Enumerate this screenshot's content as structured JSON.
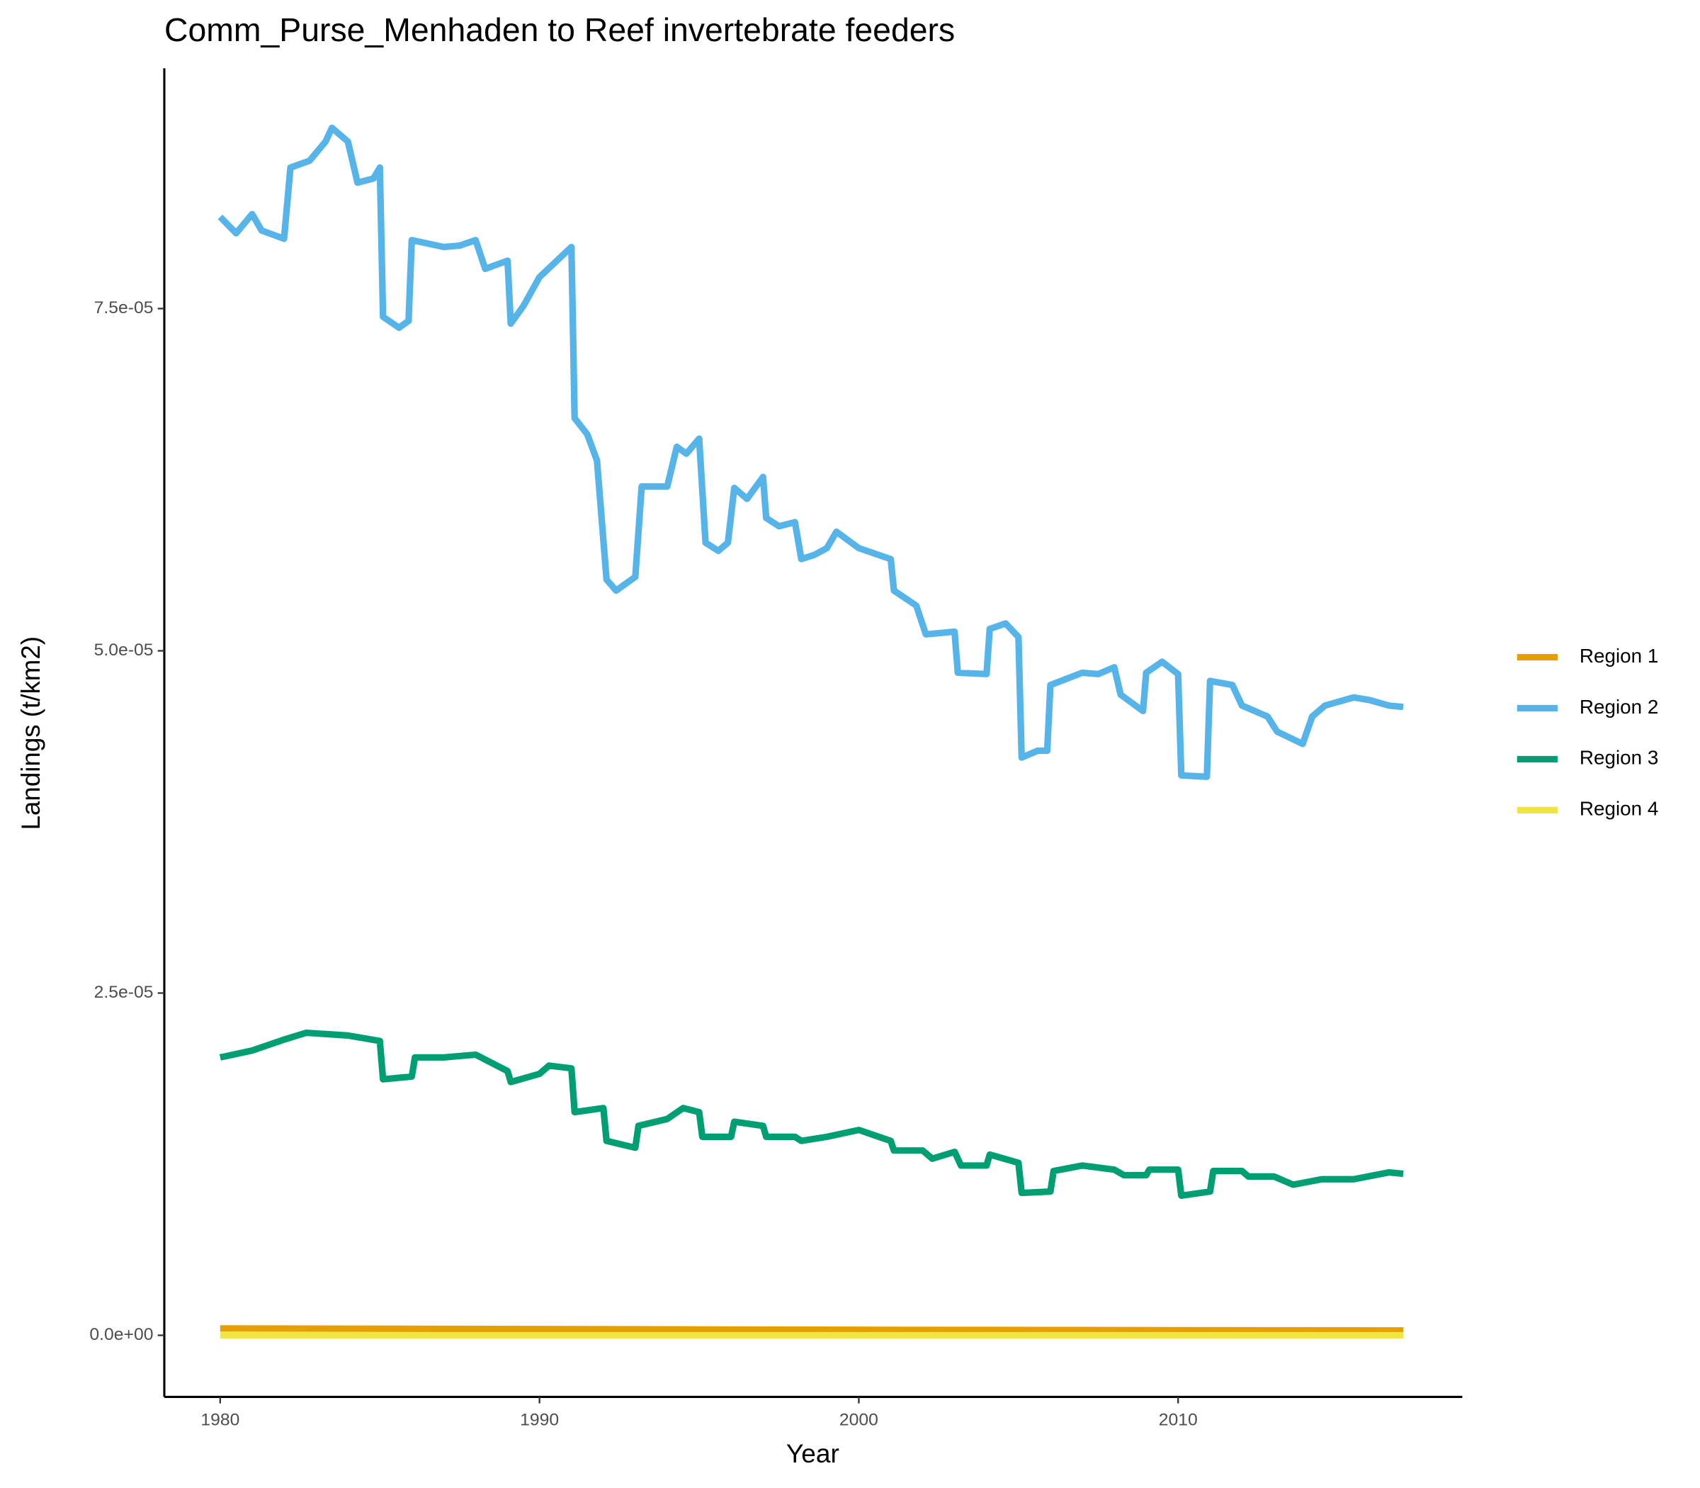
{
  "chart_data": {
    "type": "line",
    "title": "Comm_Purse_Menhaden to Reef invertebrate feeders",
    "x_label": "Year",
    "y_label": "Landings (t/km2)",
    "xlim": [
      1978.25,
      2018.9
    ],
    "ylim": [
      -4.5e-06,
      9.255e-05
    ],
    "xticks": [
      1980,
      1990,
      2000,
      2010
    ],
    "yticks": [
      {
        "value": 0,
        "label": "0.0e+00"
      },
      {
        "value": 2.5e-05,
        "label": "2.5e-05"
      },
      {
        "value": 5e-05,
        "label": "5.0e-05"
      },
      {
        "value": 7.5e-05,
        "label": "7.5e-05"
      }
    ],
    "series": [
      {
        "name": "Region 1",
        "color": "#E69F00",
        "x": [
          1980,
          1991,
          2000,
          2017.05
        ],
        "values": [
          5e-07,
          4.5e-07,
          4e-07,
          3.5e-07
        ]
      },
      {
        "name": "Region 2",
        "color": "#56B4E9",
        "x": [
          1980,
          1980.5,
          1981,
          1981.3,
          1982,
          1982.2,
          1982.8,
          1983.3,
          1983.5,
          1984,
          1984.3,
          1984.8,
          1985,
          1985.1,
          1985.6,
          1985.9,
          1986,
          1987,
          1987.5,
          1988,
          1988.3,
          1989,
          1989.1,
          1989.5,
          1990,
          1991,
          1991.1,
          1991.5,
          1991.8,
          1992.1,
          1992.4,
          1993,
          1993.2,
          1994,
          1994.3,
          1994.6,
          1995,
          1995.2,
          1995.6,
          1995.9,
          1996.1,
          1996.5,
          1997,
          1997.1,
          1997.5,
          1998,
          1998.2,
          1998.6,
          1999,
          1999.3,
          2000,
          2001,
          2001.1,
          2001.8,
          2002.1,
          2003,
          2003.1,
          2004,
          2004.1,
          2004.6,
          2005,
          2005.1,
          2005.6,
          2005.9,
          2006,
          2007,
          2007.5,
          2008,
          2008.2,
          2008.9,
          2009,
          2009.5,
          2010,
          2010.1,
          2010.9,
          2011,
          2011.7,
          2012,
          2012.8,
          2013.1,
          2013.9,
          2014.2,
          2014.6,
          2015.5,
          2016,
          2016.6,
          2017.05
        ],
        "values": [
          8.17e-05,
          8.05e-05,
          8.19e-05,
          8.07e-05,
          8.01e-05,
          8.53e-05,
          8.58e-05,
          8.72e-05,
          8.82e-05,
          8.72e-05,
          8.42e-05,
          8.45e-05,
          8.53e-05,
          7.44e-05,
          7.36e-05,
          7.41e-05,
          8e-05,
          7.95e-05,
          7.96e-05,
          8e-05,
          7.79e-05,
          7.85e-05,
          7.39e-05,
          7.52e-05,
          7.73e-05,
          7.95e-05,
          6.7e-05,
          6.58e-05,
          6.39e-05,
          5.52e-05,
          5.44e-05,
          5.54e-05,
          6.2e-05,
          6.2e-05,
          6.49e-05,
          6.44e-05,
          6.55e-05,
          5.79e-05,
          5.73e-05,
          5.79e-05,
          6.19e-05,
          6.11e-05,
          6.27e-05,
          5.97e-05,
          5.91e-05,
          5.94e-05,
          5.67e-05,
          5.7e-05,
          5.75e-05,
          5.87e-05,
          5.75e-05,
          5.67e-05,
          5.44e-05,
          5.33e-05,
          5.12e-05,
          5.14e-05,
          4.84e-05,
          4.83e-05,
          5.16e-05,
          5.2e-05,
          5.1e-05,
          4.22e-05,
          4.27e-05,
          4.27e-05,
          4.75e-05,
          4.84e-05,
          4.83e-05,
          4.88e-05,
          4.68e-05,
          4.56e-05,
          4.84e-05,
          4.92e-05,
          4.83e-05,
          4.09e-05,
          4.08e-05,
          4.78e-05,
          4.75e-05,
          4.6e-05,
          4.52e-05,
          4.41e-05,
          4.32e-05,
          4.52e-05,
          4.6e-05,
          4.66e-05,
          4.64e-05,
          4.6e-05,
          4.59e-05
        ]
      },
      {
        "name": "Region 3",
        "color": "#009E73",
        "x": [
          1980,
          1981,
          1982,
          1982.7,
          1984,
          1985,
          1985.1,
          1986,
          1986.1,
          1987,
          1988,
          1989,
          1989.1,
          1990,
          1990.3,
          1991,
          1991.1,
          1992,
          1992.1,
          1993,
          1993.1,
          1994,
          1994.5,
          1995,
          1995.1,
          1996,
          1996.1,
          1997,
          1997.1,
          1998,
          1998.2,
          1999,
          2000,
          2001,
          2001.1,
          2002,
          2002.3,
          2003,
          2003.2,
          2004,
          2004.1,
          2005,
          2005.1,
          2006,
          2006.1,
          2007,
          2008,
          2008.3,
          2009,
          2009.1,
          2010,
          2010.1,
          2011,
          2011.1,
          2012,
          2012.2,
          2013,
          2013.6,
          2014.5,
          2015.5,
          2016.6,
          2017.05
        ],
        "values": [
          2.03e-05,
          2.08e-05,
          2.16e-05,
          2.21e-05,
          2.19e-05,
          2.15e-05,
          1.87e-05,
          1.89e-05,
          2.03e-05,
          2.03e-05,
          2.05e-05,
          1.93e-05,
          1.85e-05,
          1.91e-05,
          1.97e-05,
          1.95e-05,
          1.63e-05,
          1.66e-05,
          1.42e-05,
          1.37e-05,
          1.53e-05,
          1.58e-05,
          1.66e-05,
          1.63e-05,
          1.45e-05,
          1.45e-05,
          1.56e-05,
          1.53e-05,
          1.45e-05,
          1.45e-05,
          1.42e-05,
          1.45e-05,
          1.5e-05,
          1.42e-05,
          1.35e-05,
          1.35e-05,
          1.29e-05,
          1.34e-05,
          1.24e-05,
          1.24e-05,
          1.32e-05,
          1.26e-05,
          1.04e-05,
          1.05e-05,
          1.2e-05,
          1.24e-05,
          1.21e-05,
          1.17e-05,
          1.17e-05,
          1.21e-05,
          1.21e-05,
          1.02e-05,
          1.05e-05,
          1.2e-05,
          1.2e-05,
          1.16e-05,
          1.16e-05,
          1.1e-05,
          1.14e-05,
          1.14e-05,
          1.19e-05,
          1.18e-05
        ]
      },
      {
        "name": "Region 4",
        "color": "#F0E442",
        "x": [
          1980,
          2017.05
        ],
        "values": [
          0,
          0
        ]
      }
    ]
  }
}
